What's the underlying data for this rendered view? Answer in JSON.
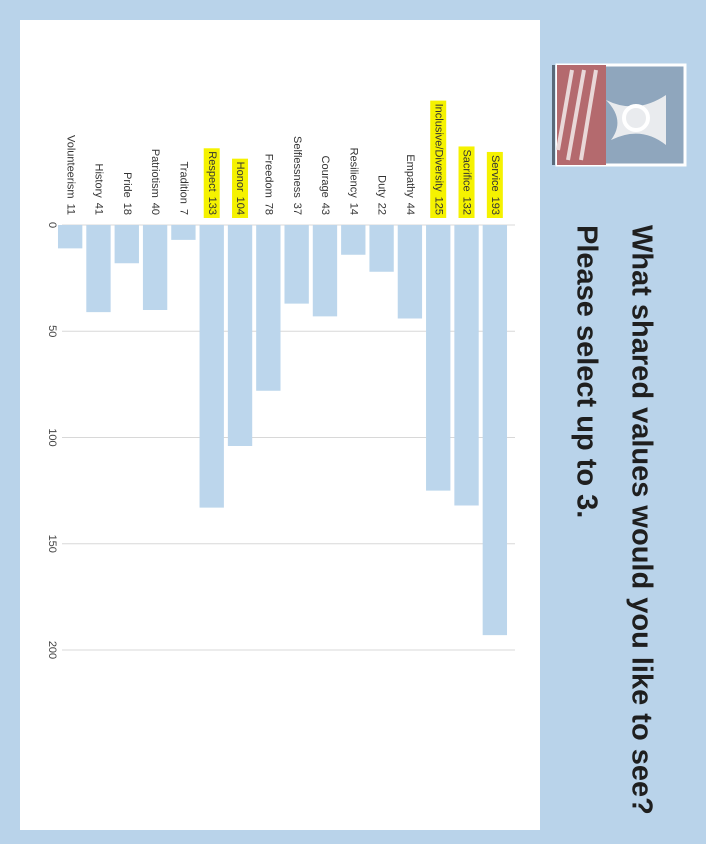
{
  "chart_data": {
    "type": "bar",
    "orientation": "horizontal",
    "title": "What shared values would you like to see?",
    "subtitle": "Please select up to 3.",
    "categories": [
      "Service",
      "Sacrifice",
      "Inclusive/Diversity",
      "Empathy",
      "Duty",
      "Resiliency",
      "Courage",
      "Selflessness",
      "Freedom",
      "Honor",
      "Respect",
      "Tradition",
      "Patriotism",
      "Pride",
      "History",
      "Volunteerism"
    ],
    "values": [
      193,
      132,
      125,
      44,
      22,
      14,
      43,
      37,
      78,
      104,
      133,
      7,
      40,
      18,
      41,
      11
    ],
    "highlight": [
      true,
      true,
      true,
      false,
      false,
      false,
      false,
      false,
      false,
      true,
      true,
      false,
      false,
      false,
      false,
      false
    ],
    "color": "#bcd6ec",
    "highlight_color": "#f5f200",
    "xlim": [
      0,
      220
    ],
    "xticks": [
      0,
      50,
      100,
      150,
      200
    ],
    "grid": true
  }
}
